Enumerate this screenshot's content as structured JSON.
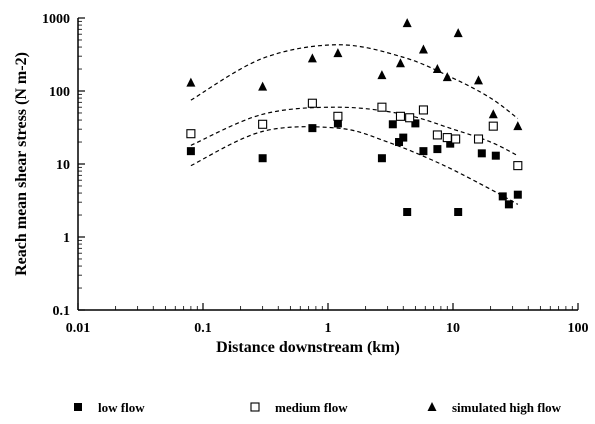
{
  "chart_data": {
    "type": "scatter",
    "title": "",
    "xlabel": "Distance downstream (km)",
    "ylabel": "Reach mean shear stress (N m-2)",
    "xscale": "log",
    "yscale": "log",
    "xlim": [
      0.01,
      100
    ],
    "ylim": [
      0.1,
      1000
    ],
    "x_ticks": [
      0.01,
      0.1,
      1,
      10,
      100
    ],
    "x_tick_labels": [
      "0.01",
      "0.1",
      "1",
      "10",
      "100"
    ],
    "y_ticks": [
      0.1,
      1,
      10,
      100,
      1000
    ],
    "y_tick_labels": [
      "0.1",
      "1",
      "10",
      "100",
      "1000"
    ],
    "grid": false,
    "legend_position": "bottom",
    "series": [
      {
        "name": "low flow",
        "marker": "filled-square",
        "points": [
          [
            0.08,
            15
          ],
          [
            0.3,
            12
          ],
          [
            0.75,
            31
          ],
          [
            1.2,
            36
          ],
          [
            2.7,
            12
          ],
          [
            3.3,
            35
          ],
          [
            3.7,
            20
          ],
          [
            4.0,
            23
          ],
          [
            4.3,
            2.2
          ],
          [
            5.0,
            36
          ],
          [
            5.8,
            15
          ],
          [
            7.5,
            16
          ],
          [
            9.5,
            19
          ],
          [
            11,
            2.2
          ],
          [
            17,
            14
          ],
          [
            22,
            13
          ],
          [
            25,
            3.6
          ],
          [
            28,
            2.8
          ],
          [
            33,
            3.8
          ]
        ]
      },
      {
        "name": "medium flow",
        "marker": "open-square",
        "points": [
          [
            0.08,
            26
          ],
          [
            0.3,
            35
          ],
          [
            0.75,
            68
          ],
          [
            1.2,
            45
          ],
          [
            2.7,
            60
          ],
          [
            3.8,
            45
          ],
          [
            4.5,
            43
          ],
          [
            5.8,
            55
          ],
          [
            7.5,
            25
          ],
          [
            9.0,
            23
          ],
          [
            10.5,
            22
          ],
          [
            16,
            22
          ],
          [
            21,
            33
          ],
          [
            33,
            9.5
          ]
        ]
      },
      {
        "name": "simulated high flow",
        "marker": "filled-triangle",
        "points": [
          [
            0.08,
            130
          ],
          [
            0.3,
            115
          ],
          [
            0.75,
            280
          ],
          [
            1.2,
            330
          ],
          [
            2.7,
            165
          ],
          [
            3.8,
            240
          ],
          [
            4.3,
            850
          ],
          [
            5.8,
            370
          ],
          [
            7.5,
            200
          ],
          [
            9.0,
            155
          ],
          [
            11,
            620
          ],
          [
            16,
            140
          ],
          [
            21,
            48
          ],
          [
            33,
            33
          ]
        ]
      }
    ],
    "trend_lines": [
      {
        "for": "simulated high flow",
        "style": "dashed",
        "points": [
          [
            0.08,
            75
          ],
          [
            0.3,
            280
          ],
          [
            1.2,
            430
          ],
          [
            4.0,
            290
          ],
          [
            10,
            150
          ],
          [
            20,
            80
          ],
          [
            33,
            42
          ]
        ]
      },
      {
        "for": "medium flow",
        "style": "dashed",
        "points": [
          [
            0.08,
            18
          ],
          [
            0.3,
            48
          ],
          [
            1.2,
            60
          ],
          [
            4.0,
            48
          ],
          [
            10,
            30
          ],
          [
            20,
            20
          ],
          [
            33,
            13
          ]
        ]
      },
      {
        "for": "low flow",
        "style": "dashed",
        "points": [
          [
            0.08,
            9.5
          ],
          [
            0.3,
            28
          ],
          [
            1.2,
            31
          ],
          [
            3.0,
            20
          ],
          [
            8,
            10
          ],
          [
            20,
            4.5
          ],
          [
            33,
            2.8
          ]
        ]
      }
    ]
  }
}
